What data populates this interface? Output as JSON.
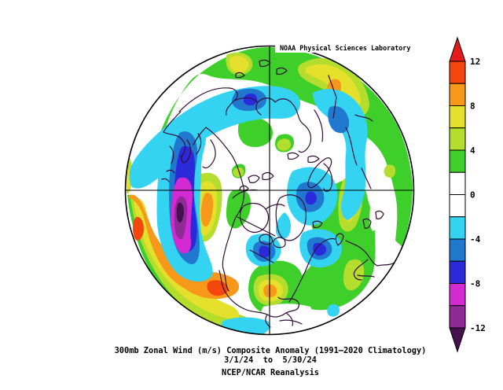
{
  "header": {
    "lab_label": "NOAA Physical Sciences Laboratory"
  },
  "caption": {
    "line1": "300mb Zonal Wind (m/s) Composite Anomaly (1991–2020 Climatology)",
    "line2": "3/1/24  to  5/30/24",
    "line3": "NCEP/NCAR Reanalysis"
  },
  "map": {
    "coast_color": "#330d38",
    "frame_color": "#000000",
    "background": "#ffffff"
  },
  "chart_data": {
    "type": "filled_contour_map",
    "title": "300mb Zonal Wind (m/s) Composite Anomaly (1991–2020 Climatology)",
    "variable": "300mb Zonal Wind",
    "units": "m/s",
    "composite_period": "3/1/24 to 5/30/24",
    "climatology": "1991-2020",
    "data_source": "NCEP/NCAR Reanalysis",
    "institution": "NOAA Physical Sciences Laboratory",
    "projection": "Northern Hemisphere polar stereographic",
    "contour_levels": [
      -12,
      -10,
      -8,
      -6,
      -4,
      -2,
      0,
      2,
      4,
      6,
      8,
      10,
      12
    ],
    "colorbar": {
      "orientation": "vertical-right",
      "contour_interval": 2,
      "range_shown": [
        -12,
        12
      ],
      "has_arrow_caps": true,
      "tick_labels": [
        "12",
        "8",
        "4",
        "0",
        "-4",
        "-8",
        "-12"
      ],
      "ticks": [
        {
          "label": "12",
          "boundary_index": 0
        },
        {
          "label": "8",
          "boundary_index": 2
        },
        {
          "label": "4",
          "boundary_index": 4
        },
        {
          "label": "0",
          "boundary_index": 6
        },
        {
          "label": "-4",
          "boundary_index": 8
        },
        {
          "label": "-8",
          "boundary_index": 10
        },
        {
          "label": "-12",
          "boundary_index": 12
        }
      ],
      "cells": [
        "10_12",
        "8_10",
        "6_8",
        "4_6",
        "2_4",
        "0_2",
        "-2_0",
        "-4_-2",
        "-6_-4",
        "-8_-6",
        "-10_-8",
        "-12_-10"
      ],
      "level_colors": {
        "gt12": "#e31b1b",
        "10_12": "#f4470e",
        "8_10": "#f8981b",
        "6_8": "#e4e02b",
        "4_6": "#b5dd2e",
        "2_4": "#3ecf2a",
        "0_2": "#ffffff",
        "-2_0": "#ffffff",
        "-4_-2": "#35d3f2",
        "-6_-4": "#2178cf",
        "-8_-6": "#2a2ada",
        "-10_-8": "#d42ad4",
        "-12_-10": "#8f2a96",
        "lt-12": "#44104d",
        "white": "#ffffff"
      }
    },
    "anomaly_features": [
      {
        "region": "Central North Pacific (left of map)",
        "sign": "negative",
        "peak_m_s": "< -12",
        "note": "large elongated core: cyan through magenta/purple shading"
      },
      {
        "region": "Subtropical North Pacific into Mexico/Baja (lower-left rim band)",
        "sign": "positive",
        "peak_m_s": "+10 to +12",
        "note": "broad orange/yellow band along rim"
      },
      {
        "region": "West coast of North America",
        "sign": "positive",
        "peak_m_s": "+8 to +10"
      },
      {
        "region": "Arctic Siberia band (top of map)",
        "sign": "negative",
        "peak_m_s": "-6"
      },
      {
        "region": "Northeast Siberia (upper right)",
        "sign": "positive",
        "peak_m_s": "+8 to +10",
        "note": "yellow band with orange spot"
      },
      {
        "region": "East Asia midlatitudes (right side)",
        "sign": "negative",
        "peak_m_s": "-6"
      },
      {
        "region": "Barents/Kara Seas (right of pole)",
        "sign": "negative",
        "peak_m_s": "-6"
      },
      {
        "region": "Eastern North America / NW Atlantic",
        "sign": "negative",
        "peak_m_s": "-8"
      },
      {
        "region": "Labrador / Davis Strait (below center)",
        "sign": "negative",
        "peak_m_s": "-8"
      },
      {
        "region": "Gulf of Mexico / SE United States",
        "sign": "positive",
        "peak_m_s": "+8 to +10"
      },
      {
        "region": "Midlatitude Eurasia and bottom-right sector",
        "sign": "positive",
        "peak_m_s": "+2 to +6",
        "note": "green/yellow-green swaths"
      }
    ]
  }
}
